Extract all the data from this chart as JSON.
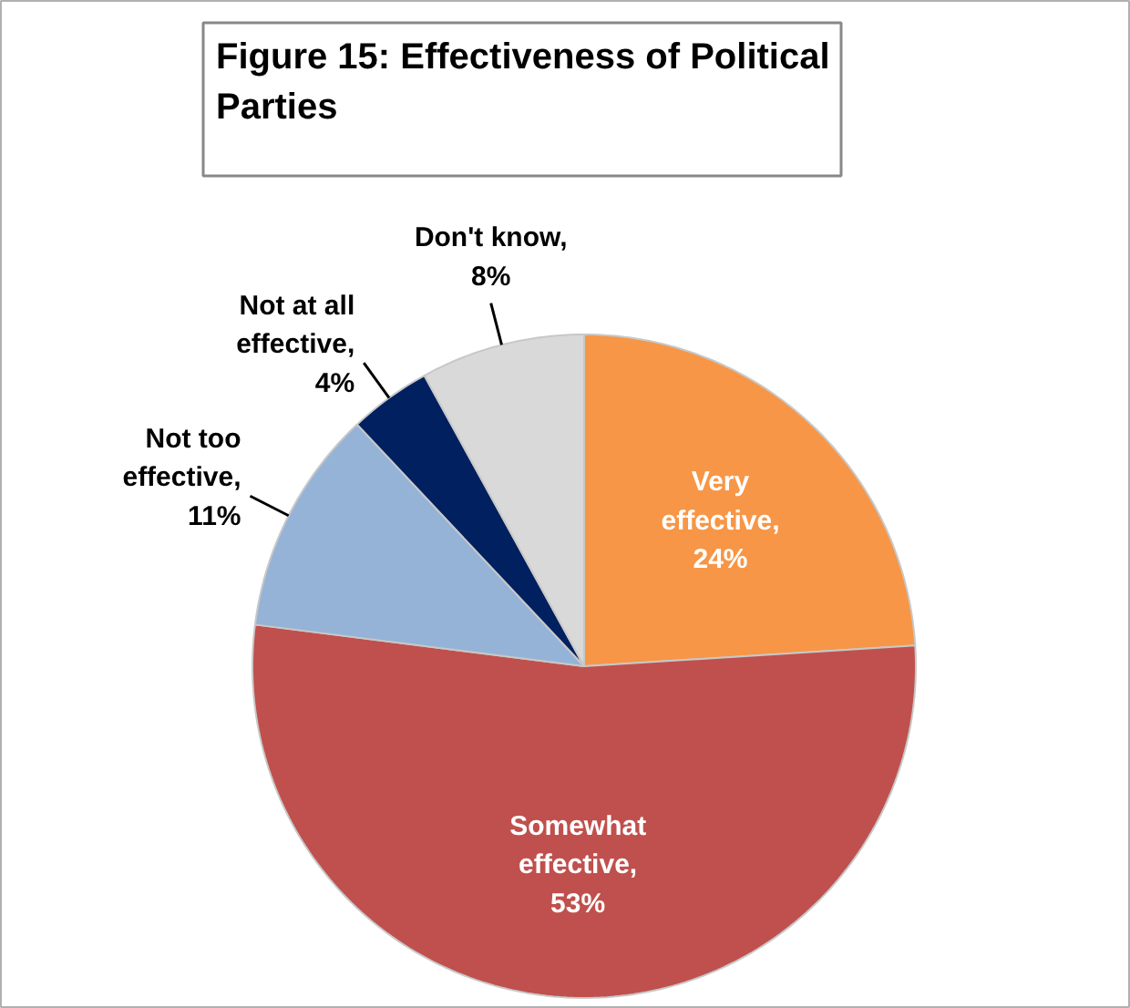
{
  "chart_data": {
    "type": "pie",
    "title": "Figure 15: Effectiveness of Political\nParties",
    "categories": [
      "Very\neffective",
      "Somewhat\neffective",
      "Not too\neffective",
      "Not at all\neffective",
      "Don't know"
    ],
    "value_labels": [
      ",\n24%",
      ",\n53%",
      ",\n11%",
      ",\n4%",
      ",\n8%"
    ],
    "values": [
      24,
      53,
      11,
      4,
      8
    ],
    "colors": [
      "#f79646",
      "#c0504d",
      "#95b3d7",
      "#002060",
      "#d9d9d9"
    ],
    "legend": false
  }
}
